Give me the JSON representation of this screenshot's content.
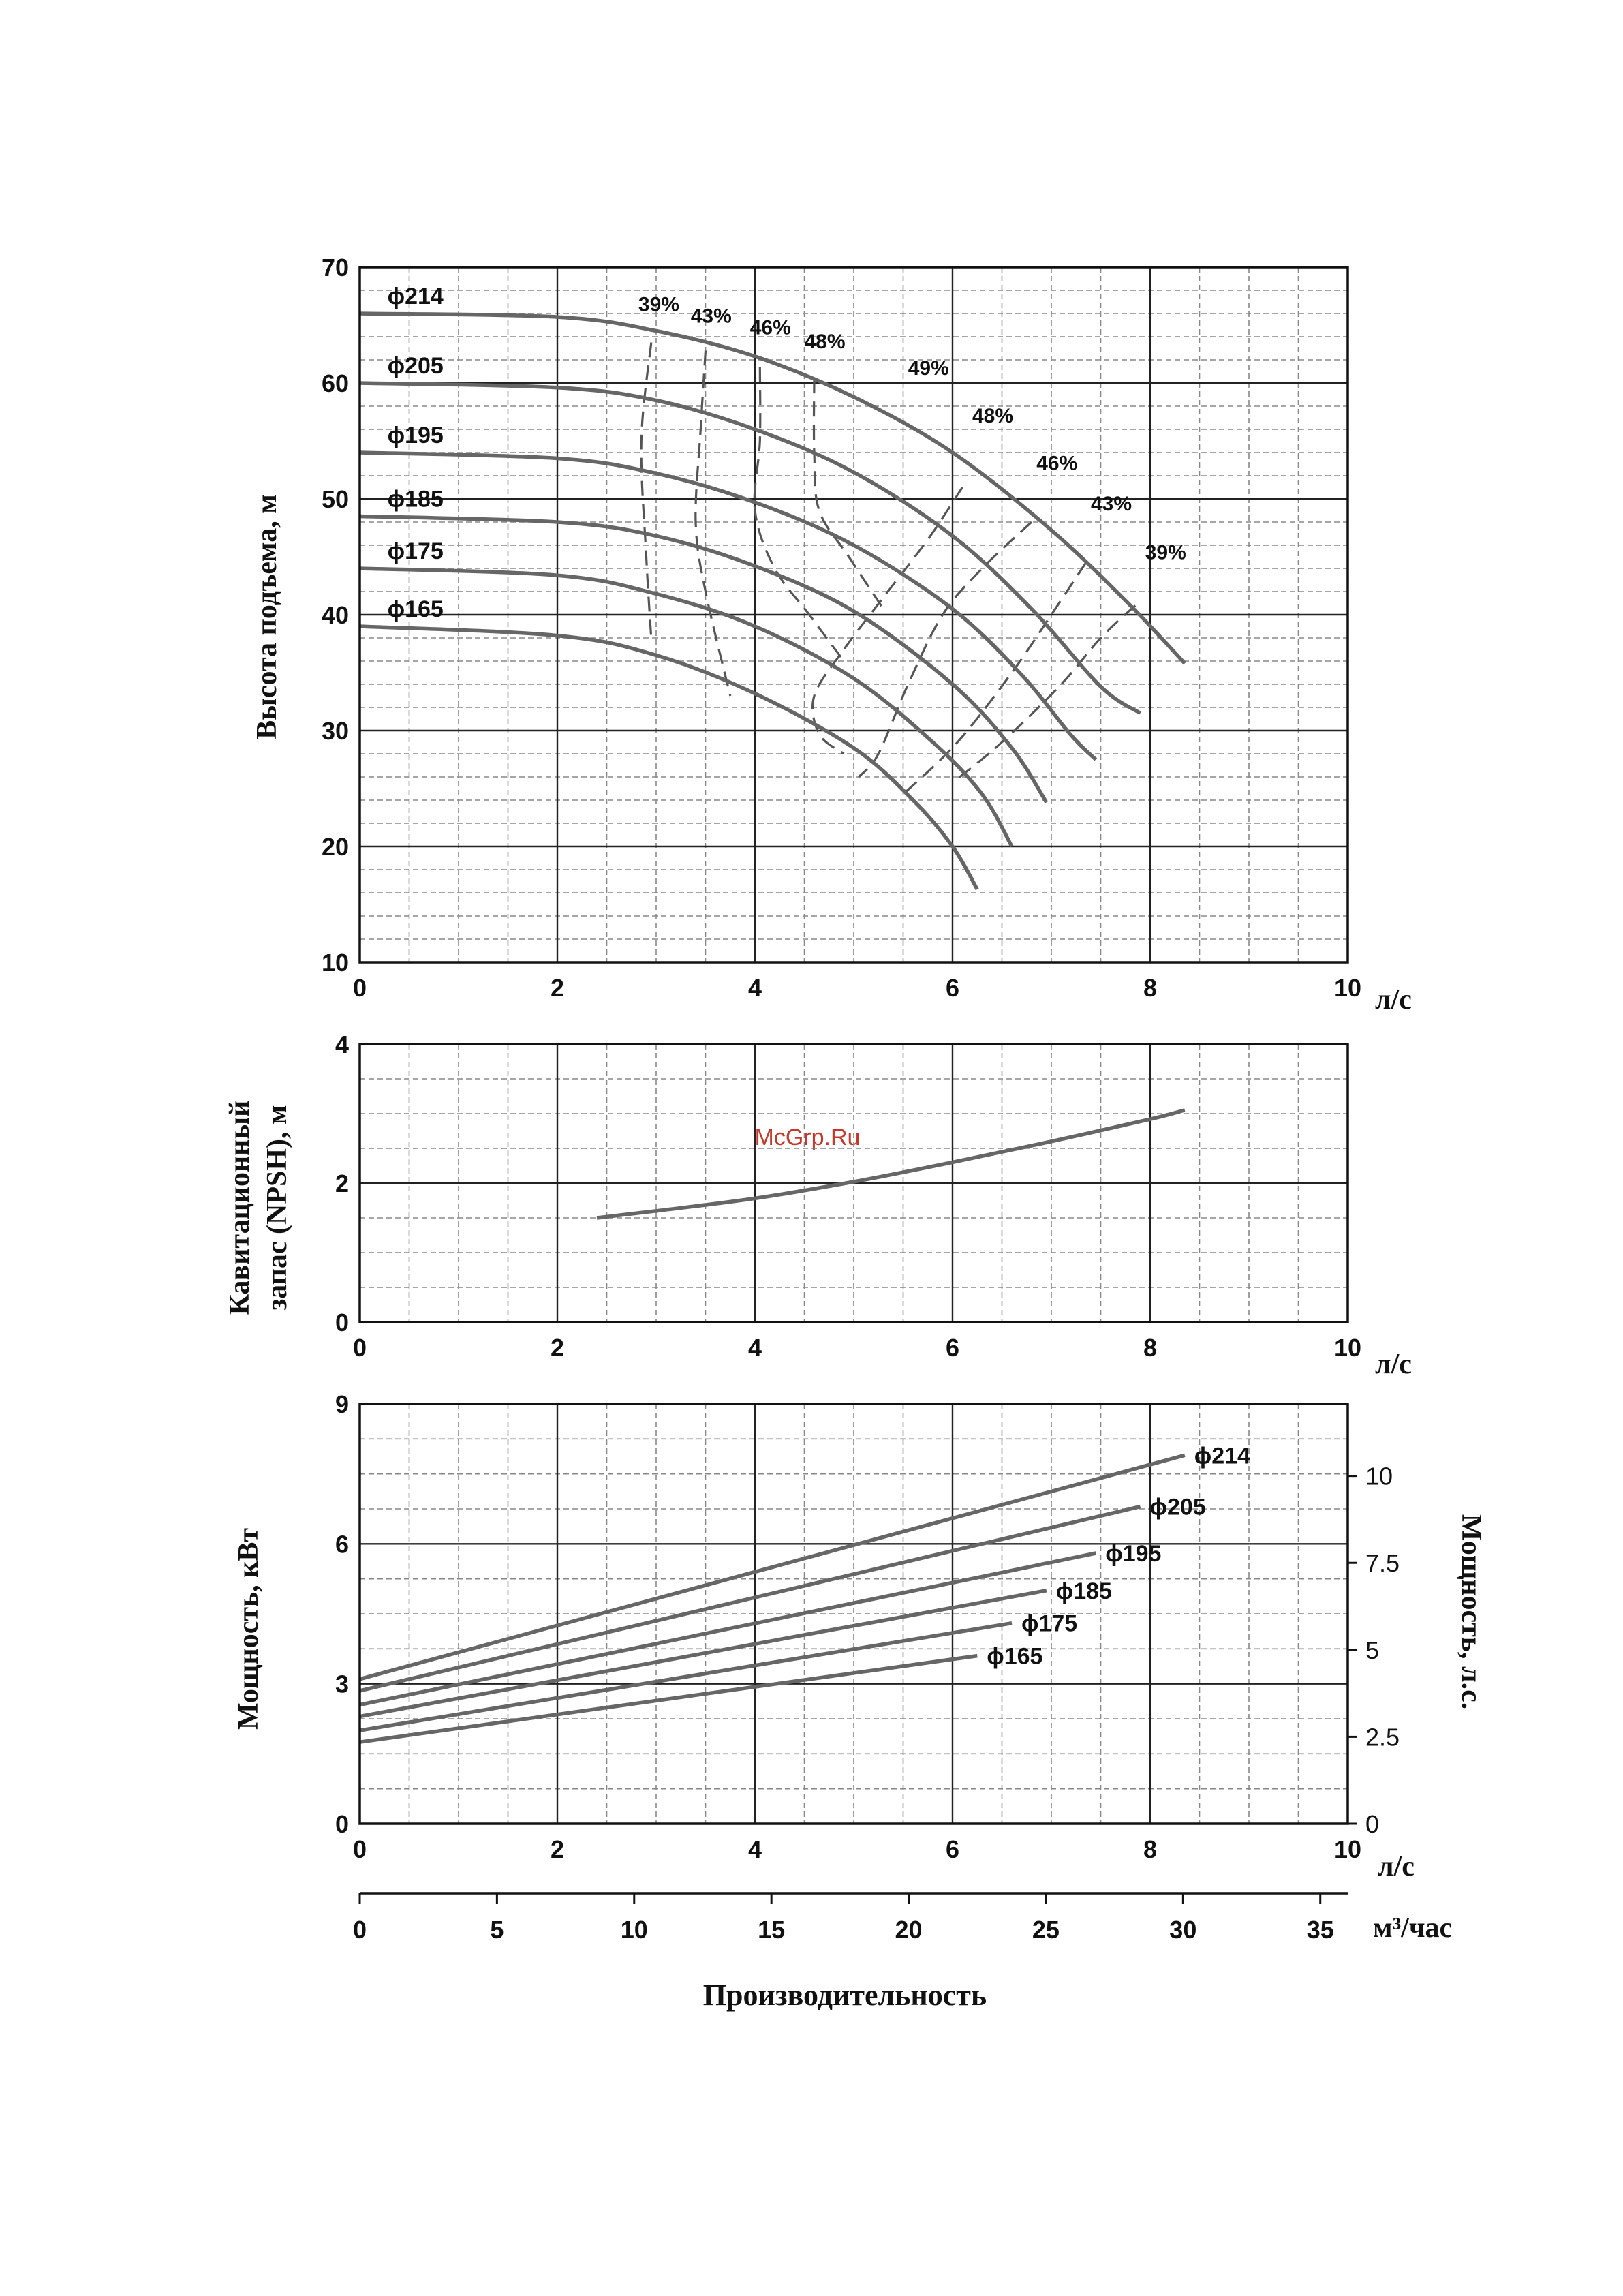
{
  "watermark": "McGrp.Ru",
  "units": {
    "flow_ls": "л/с",
    "flow_m3h": "м³/час"
  },
  "chart_data": [
    {
      "id": "head",
      "type": "line",
      "ylabel": "Высота подъема, м",
      "xlim": [
        0,
        10
      ],
      "ylim": [
        10,
        70
      ],
      "xticks": [
        "0",
        "2",
        "4",
        "6",
        "8",
        "10"
      ],
      "yticks": [
        "10",
        "20",
        "30",
        "40",
        "50",
        "60",
        "70"
      ],
      "grid": true,
      "series": [
        {
          "name": "ϕ214",
          "points": [
            [
              0,
              66
            ],
            [
              2,
              65.7
            ],
            [
              3,
              64.5
            ],
            [
              4,
              62.3
            ],
            [
              5,
              58.8
            ],
            [
              6,
              54
            ],
            [
              7,
              47.3
            ],
            [
              7.8,
              40.8
            ],
            [
              8.35,
              35.8
            ]
          ]
        },
        {
          "name": "ϕ205",
          "points": [
            [
              0,
              60
            ],
            [
              2,
              59.6
            ],
            [
              3,
              58.5
            ],
            [
              4,
              56
            ],
            [
              5,
              52.3
            ],
            [
              6,
              46.8
            ],
            [
              6.8,
              40.5
            ],
            [
              7.5,
              33.8
            ],
            [
              7.9,
              31.5
            ]
          ]
        },
        {
          "name": "ϕ195",
          "points": [
            [
              0,
              54
            ],
            [
              2,
              53.5
            ],
            [
              3,
              52.2
            ],
            [
              4,
              49.7
            ],
            [
              5,
              46
            ],
            [
              6,
              40.5
            ],
            [
              6.7,
              34.8
            ],
            [
              7.2,
              29.6
            ],
            [
              7.45,
              27.5
            ]
          ]
        },
        {
          "name": "ϕ185",
          "points": [
            [
              0,
              48.5
            ],
            [
              2,
              48
            ],
            [
              3,
              46.8
            ],
            [
              4,
              44.2
            ],
            [
              5,
              40.3
            ],
            [
              6,
              34
            ],
            [
              6.6,
              28.5
            ],
            [
              6.95,
              23.8
            ]
          ]
        },
        {
          "name": "ϕ175",
          "points": [
            [
              0,
              44
            ],
            [
              2,
              43.4
            ],
            [
              3,
              41.8
            ],
            [
              4,
              39
            ],
            [
              5,
              34.5
            ],
            [
              5.8,
              29
            ],
            [
              6.3,
              24.5
            ],
            [
              6.6,
              20
            ]
          ]
        },
        {
          "name": "ϕ165",
          "points": [
            [
              0,
              39
            ],
            [
              2,
              38.2
            ],
            [
              3,
              36.5
            ],
            [
              4,
              33.2
            ],
            [
              5,
              28.5
            ],
            [
              5.6,
              24
            ],
            [
              6,
              20
            ],
            [
              6.25,
              16.3
            ]
          ]
        }
      ],
      "efficiency_lines": [
        {
          "label": "39%",
          "points": [
            [
              2.95,
              63.5
            ],
            [
              2.85,
              55
            ],
            [
              2.9,
              45
            ],
            [
              2.95,
              38
            ]
          ]
        },
        {
          "label": "43%",
          "points": [
            [
              3.5,
              62.8
            ],
            [
              3.45,
              56
            ],
            [
              3.4,
              48
            ],
            [
              3.5,
              42
            ],
            [
              3.75,
              33
            ]
          ]
        },
        {
          "label": "46%",
          "points": [
            [
              4.05,
              61.4
            ],
            [
              4.05,
              55
            ],
            [
              4,
              49
            ],
            [
              4.2,
              44
            ],
            [
              4.55,
              40
            ],
            [
              4.9,
              36
            ]
          ]
        },
        {
          "label": "48%",
          "points": [
            [
              4.6,
              60.4
            ],
            [
              4.6,
              54
            ],
            [
              4.65,
              49
            ],
            [
              4.95,
              45
            ],
            [
              5.3,
              40.5
            ]
          ]
        },
        {
          "label": "48%",
          "points": [
            [
              6.1,
              51
            ],
            [
              5.75,
              46.5
            ],
            [
              5.3,
              41.5
            ],
            [
              4.9,
              37
            ],
            [
              4.6,
              33
            ],
            [
              4.65,
              29.7
            ],
            [
              4.9,
              28
            ]
          ]
        },
        {
          "label": "46%",
          "points": [
            [
              6.8,
              48
            ],
            [
              6.3,
              44
            ],
            [
              5.9,
              40
            ],
            [
              5.55,
              34
            ],
            [
              5.25,
              28
            ],
            [
              5.05,
              26
            ]
          ]
        },
        {
          "label": "43%",
          "points": [
            [
              7.35,
              44.5
            ],
            [
              7,
              40
            ],
            [
              6.6,
              35
            ],
            [
              6.05,
              29
            ],
            [
              5.5,
              24.5
            ]
          ]
        },
        {
          "label": "39%",
          "points": [
            [
              7.85,
              40.8
            ],
            [
              7.5,
              38
            ],
            [
              7.1,
              34
            ],
            [
              6.5,
              29
            ],
            [
              6,
              25.5
            ]
          ]
        }
      ],
      "efficiency_labels": [
        "39%",
        "43%",
        "46%",
        "48%",
        "49%",
        "48%",
        "46%",
        "43%",
        "39%"
      ]
    },
    {
      "id": "npsh",
      "type": "line",
      "ylabel_lines": [
        "Кавитационный",
        "запас (NPSH), м"
      ],
      "xlim": [
        0,
        10
      ],
      "ylim": [
        0,
        4
      ],
      "xticks": [
        "0",
        "2",
        "4",
        "6",
        "8",
        "10"
      ],
      "yticks": [
        "0",
        "2",
        "4"
      ],
      "grid": true,
      "series": [
        {
          "name": "",
          "points": [
            [
              2.4,
              1.5
            ],
            [
              3,
              1.6
            ],
            [
              4,
              1.78
            ],
            [
              5,
              2.02
            ],
            [
              6,
              2.3
            ],
            [
              7,
              2.6
            ],
            [
              8,
              2.92
            ],
            [
              8.35,
              3.05
            ]
          ]
        }
      ]
    },
    {
      "id": "power",
      "type": "line",
      "ylabel": "Мощность, кВт",
      "ylabel_right": "Мощность, л.с.",
      "xlim": [
        0,
        10
      ],
      "ylim": [
        0,
        9
      ],
      "xticks": [
        "0",
        "2",
        "4",
        "6",
        "8",
        "10"
      ],
      "yticks": [
        "0",
        "3",
        "6",
        "9"
      ],
      "yticks_right": [
        "0",
        "2.5",
        "5",
        "7.5",
        "10"
      ],
      "yticks_right_values": [
        0,
        2.5,
        5,
        7.5,
        10
      ],
      "ylim_right": [
        0,
        12.07
      ],
      "grid": true,
      "series": [
        {
          "name": "ϕ214",
          "points": [
            [
              0,
              3.1
            ],
            [
              8.35,
              7.9
            ]
          ]
        },
        {
          "name": "ϕ205",
          "points": [
            [
              0,
              2.85
            ],
            [
              7.9,
              6.8
            ]
          ]
        },
        {
          "name": "ϕ195",
          "points": [
            [
              0,
              2.55
            ],
            [
              7.45,
              5.8
            ]
          ]
        },
        {
          "name": "ϕ185",
          "points": [
            [
              0,
              2.3
            ],
            [
              6.95,
              5.0
            ]
          ]
        },
        {
          "name": "ϕ175",
          "points": [
            [
              0,
              2.0
            ],
            [
              6.6,
              4.3
            ]
          ]
        },
        {
          "name": "ϕ165",
          "points": [
            [
              0,
              1.75
            ],
            [
              6.25,
              3.6
            ]
          ]
        }
      ]
    }
  ],
  "secondary_axis": {
    "ticks": [
      "0",
      "5",
      "10",
      "15",
      "20",
      "25",
      "30",
      "35"
    ],
    "values": [
      0,
      5,
      10,
      15,
      20,
      25,
      30,
      35
    ],
    "xlim": [
      0,
      36
    ]
  },
  "xlabel": "Производительность"
}
